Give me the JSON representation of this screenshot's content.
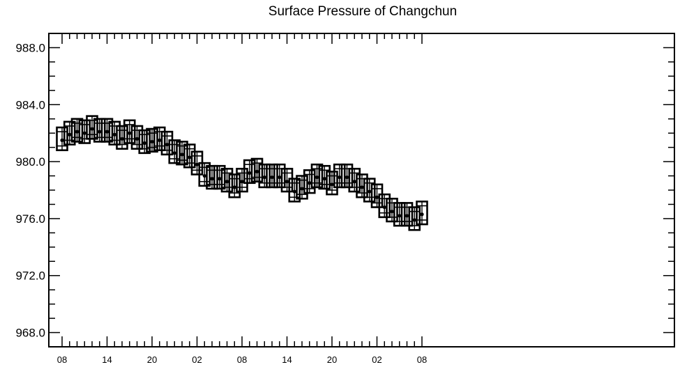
{
  "chart_data": {
    "type": "box",
    "title": "Surface Pressure of Changchun",
    "xlabel": "",
    "ylabel": "",
    "ylim": [
      967,
      989
    ],
    "y_ticks": [
      "988.0",
      "984.0",
      "980.0",
      "976.0",
      "972.0",
      "968.0"
    ],
    "y_tick_values": [
      988,
      984,
      980,
      976,
      972,
      968
    ],
    "x_ticks": [
      {
        "hour_index": 0,
        "label": "08"
      },
      {
        "hour_index": 6,
        "label": "14"
      },
      {
        "hour_index": 12,
        "label": "20"
      },
      {
        "hour_index": 18,
        "label": "02"
      },
      {
        "hour_index": 24,
        "label": "08"
      },
      {
        "hour_index": 30,
        "label": "14"
      },
      {
        "hour_index": 36,
        "label": "20"
      },
      {
        "hour_index": 42,
        "label": "02"
      },
      {
        "hour_index": 48,
        "label": "08"
      }
    ],
    "x_minor_step": 1,
    "x_count": 49,
    "grid": false,
    "series": [
      {
        "x": [
          0,
          1,
          2,
          3,
          4,
          5,
          6,
          7,
          8,
          9,
          10,
          11,
          12,
          13,
          14,
          15,
          16,
          17,
          18,
          19,
          20,
          21,
          22,
          23,
          24,
          25,
          26,
          27,
          28,
          29,
          30,
          31,
          32,
          33,
          34,
          35,
          36,
          37,
          38,
          39,
          40,
          41,
          42,
          43,
          44,
          45,
          46,
          47,
          48
        ],
        "median": [
          981.5,
          981.9,
          982.1,
          982.0,
          982.3,
          982.1,
          982.1,
          981.9,
          981.6,
          982.0,
          981.6,
          981.3,
          981.4,
          981.5,
          981.2,
          980.6,
          980.5,
          980.3,
          979.8,
          979.0,
          978.8,
          978.8,
          978.6,
          978.2,
          978.6,
          979.2,
          979.3,
          978.9,
          978.9,
          978.9,
          978.6,
          977.9,
          978.1,
          978.5,
          978.9,
          978.8,
          978.4,
          978.9,
          978.9,
          978.6,
          978.2,
          977.9,
          977.5,
          976.8,
          976.5,
          976.2,
          976.2,
          975.9,
          976.3
        ],
        "q1": [
          981.1,
          981.5,
          981.7,
          981.6,
          981.9,
          981.7,
          981.7,
          981.5,
          981.2,
          981.6,
          981.2,
          980.9,
          981.0,
          981.1,
          980.8,
          980.2,
          980.1,
          979.9,
          979.4,
          978.6,
          978.4,
          978.4,
          978.2,
          977.8,
          978.2,
          978.8,
          978.9,
          978.5,
          978.5,
          978.5,
          978.2,
          977.5,
          977.7,
          978.1,
          978.5,
          978.4,
          978.0,
          978.5,
          978.5,
          978.2,
          977.8,
          977.5,
          977.1,
          976.4,
          976.1,
          975.8,
          975.8,
          975.5,
          975.9
        ],
        "q3": [
          982.1,
          982.5,
          982.7,
          982.6,
          982.9,
          982.7,
          982.7,
          982.5,
          982.2,
          982.6,
          982.2,
          981.9,
          982.0,
          982.1,
          981.8,
          981.2,
          981.1,
          980.9,
          980.4,
          979.6,
          979.4,
          979.4,
          979.2,
          978.8,
          979.2,
          979.8,
          979.9,
          979.5,
          979.5,
          979.5,
          979.2,
          978.5,
          978.7,
          979.1,
          979.5,
          979.4,
          979.0,
          979.5,
          979.5,
          979.2,
          978.8,
          978.5,
          978.1,
          977.4,
          977.1,
          976.8,
          976.8,
          976.5,
          976.9
        ],
        "min": [
          980.8,
          981.2,
          981.4,
          981.3,
          981.6,
          981.4,
          981.4,
          981.2,
          980.9,
          981.3,
          980.9,
          980.6,
          980.7,
          980.8,
          980.5,
          979.9,
          979.8,
          979.6,
          979.1,
          978.3,
          978.1,
          978.1,
          977.9,
          977.5,
          977.9,
          978.5,
          978.6,
          978.2,
          978.2,
          978.2,
          977.9,
          977.2,
          977.4,
          977.8,
          978.2,
          978.1,
          977.7,
          978.2,
          978.2,
          977.9,
          977.5,
          977.2,
          976.8,
          976.1,
          975.8,
          975.5,
          975.5,
          975.2,
          975.6
        ],
        "max": [
          982.4,
          982.8,
          983.0,
          982.9,
          983.2,
          983.0,
          983.0,
          982.8,
          982.5,
          982.9,
          982.5,
          982.2,
          982.3,
          982.4,
          982.1,
          981.5,
          981.4,
          981.2,
          980.7,
          979.9,
          979.7,
          979.7,
          979.5,
          979.1,
          979.5,
          980.1,
          980.2,
          979.8,
          979.8,
          979.8,
          979.5,
          978.8,
          979.0,
          979.4,
          979.8,
          979.7,
          979.3,
          979.8,
          979.8,
          979.5,
          979.1,
          978.8,
          978.4,
          977.7,
          977.4,
          977.1,
          977.1,
          976.8,
          977.2
        ]
      }
    ]
  }
}
